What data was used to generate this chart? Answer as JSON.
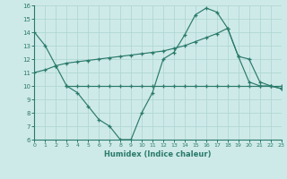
{
  "line1_x": [
    0,
    1,
    2,
    3,
    4,
    5,
    6,
    7,
    8,
    9,
    10,
    11,
    12,
    13,
    14,
    15,
    16,
    17,
    18,
    19,
    20,
    21,
    22,
    23
  ],
  "line1_y": [
    14,
    13,
    11.5,
    10,
    9.5,
    8.5,
    7.5,
    7,
    6,
    6,
    8,
    9.5,
    12,
    12.5,
    13.8,
    15.3,
    15.8,
    15.5,
    14.3,
    12.2,
    10.3,
    10,
    10,
    9.8
  ],
  "line2_x": [
    0,
    1,
    2,
    3,
    4,
    5,
    6,
    7,
    8,
    9,
    10,
    11,
    12,
    13,
    14,
    15,
    16,
    17,
    18,
    19,
    20,
    21,
    22,
    23
  ],
  "line2_y": [
    11,
    11.2,
    11.5,
    11.7,
    11.8,
    11.9,
    12.0,
    12.1,
    12.2,
    12.3,
    12.4,
    12.5,
    12.6,
    12.8,
    13.0,
    13.3,
    13.6,
    13.9,
    14.3,
    12.2,
    12.0,
    10.3,
    10.0,
    9.8
  ],
  "line3_x": [
    3,
    4,
    5,
    6,
    7,
    8,
    9,
    10,
    11,
    12,
    13,
    14,
    15,
    16,
    17,
    18,
    19,
    20,
    21,
    22,
    23
  ],
  "line3_y": [
    10,
    10,
    10,
    10,
    10,
    10,
    10,
    10,
    10,
    10,
    10,
    10,
    10,
    10,
    10,
    10,
    10,
    10,
    10,
    10,
    10
  ],
  "color": "#2a7a6a",
  "bg_color": "#ceeae8",
  "grid_color": "#b0d8d4",
  "xlabel": "Humidex (Indice chaleur)",
  "ylim": [
    6,
    16
  ],
  "xlim": [
    0,
    23
  ],
  "yticks": [
    6,
    7,
    8,
    9,
    10,
    11,
    12,
    13,
    14,
    15,
    16
  ],
  "xticks": [
    0,
    1,
    2,
    3,
    4,
    5,
    6,
    7,
    8,
    9,
    10,
    11,
    12,
    13,
    14,
    15,
    16,
    17,
    18,
    19,
    20,
    21,
    22,
    23
  ]
}
